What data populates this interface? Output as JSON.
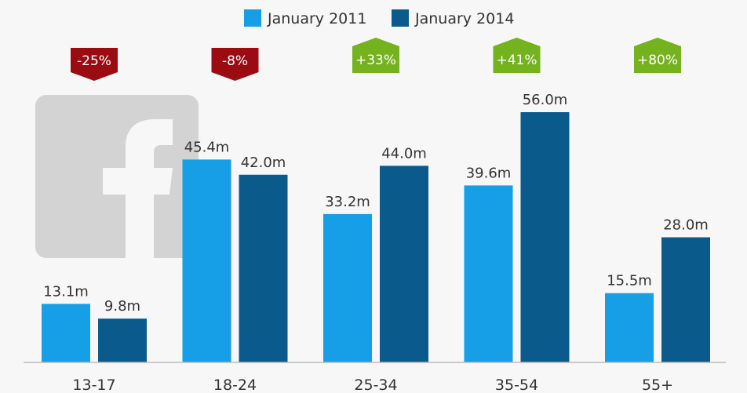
{
  "colors": {
    "series_2011": "#169fe6",
    "series_2014": "#0b5a8c",
    "decrease_badge": "#9a0b12",
    "increase_badge": "#74b21e",
    "logo": "#d3d3d3",
    "background": "#f7f7f7",
    "axis": "#bbbbbb"
  },
  "logo": {
    "icon": "facebook-logo-icon"
  },
  "chart_data": {
    "type": "bar",
    "categories": [
      "13-17",
      "18-24",
      "25-34",
      "35-54",
      "55+"
    ],
    "series": [
      {
        "name": "January 2011",
        "values": [
          13.1,
          45.4,
          33.2,
          39.6,
          15.5
        ],
        "labels": [
          "13.1m",
          "45.4m",
          "33.2m",
          "39.6m",
          "15.5m"
        ]
      },
      {
        "name": "January 2014",
        "values": [
          9.8,
          42.0,
          44.0,
          56.0,
          28.0
        ],
        "labels": [
          "9.8m",
          "42.0m",
          "44.0m",
          "56.0m",
          "28.0m"
        ]
      }
    ],
    "changes": [
      {
        "label": "-25%",
        "direction": "down"
      },
      {
        "label": "-8%",
        "direction": "down"
      },
      {
        "label": "+33%",
        "direction": "up"
      },
      {
        "label": "+41%",
        "direction": "up"
      },
      {
        "label": "+80%",
        "direction": "up"
      }
    ],
    "ylim": [
      0,
      56
    ],
    "legend_position": "top-center",
    "grid": false
  }
}
